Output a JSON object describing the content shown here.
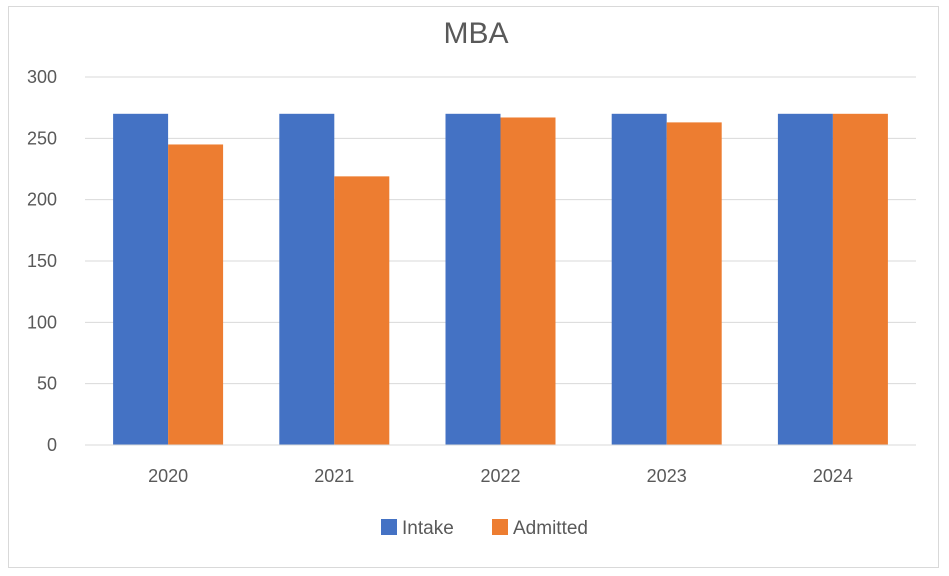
{
  "chart_data": {
    "type": "bar",
    "title": "MBA",
    "xlabel": "",
    "ylabel": "",
    "categories": [
      "2020",
      "2021",
      "2022",
      "2023",
      "2024"
    ],
    "series": [
      {
        "name": "Intake",
        "color": "#4472c4",
        "values": [
          270,
          270,
          270,
          270,
          270
        ]
      },
      {
        "name": "Admitted",
        "color": "#ed7d31",
        "values": [
          245,
          219,
          267,
          263,
          270
        ]
      }
    ],
    "ylim": [
      0,
      300
    ],
    "yticks": [
      "0",
      "50",
      "100",
      "150",
      "200",
      "250",
      "300"
    ],
    "grid": true,
    "legend_position": "bottom"
  }
}
